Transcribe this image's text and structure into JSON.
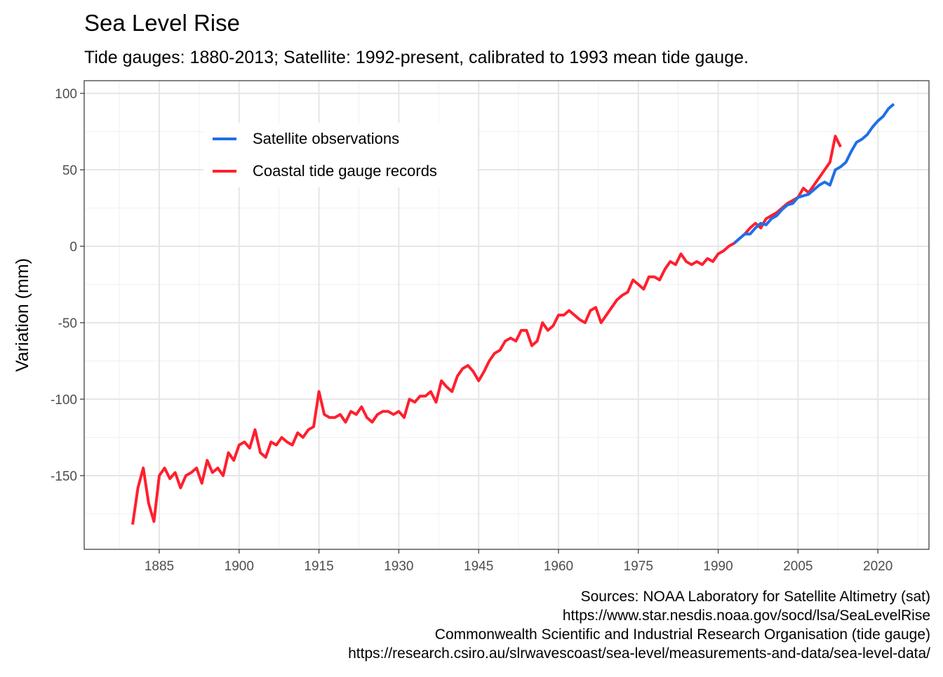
{
  "chart_data": {
    "type": "line",
    "title": "Sea Level Rise",
    "subtitle": "Tide gauges: 1880-2013; Satellite: 1992-present, calibrated to 1993 mean tide gauge.",
    "y_label": "Variation (mm)",
    "caption": [
      "Sources: NOAA Laboratory for Satellite Altimetry (sat)",
      "https://www.star.nesdis.noaa.gov/socd/lsa/SeaLevelRise",
      "Commonwealth Scientific and Industrial Research Organisation (tide gauge)",
      "https://research.csiro.au/slrwavescoast/sea-level/measurements-and-data/sea-level-data/"
    ],
    "xlim": [
      1870.9,
      2029.6
    ],
    "xticks": [
      1885,
      1900,
      1915,
      1930,
      1945,
      1960,
      1975,
      1990,
      2005,
      2020
    ],
    "ylim": [
      -198.2,
      108.3
    ],
    "yticks": [
      -150,
      -100,
      -50,
      0,
      50,
      100
    ],
    "grid": true,
    "legend": "top-left",
    "series": [
      {
        "name": "Satellite observations",
        "color": "#1f6fe8",
        "x": [
          1993,
          1994,
          1995,
          1996,
          1997,
          1998,
          1999,
          2000,
          2001,
          2002,
          2003,
          2004,
          2005,
          2006,
          2007,
          2008,
          2009,
          2010,
          2011,
          2012,
          2013,
          2014,
          2015,
          2016,
          2017,
          2018,
          2019,
          2020,
          2021,
          2022,
          2023
        ],
        "values": [
          2,
          5,
          8,
          8,
          12,
          15,
          14,
          18,
          20,
          24,
          27,
          28,
          32,
          33,
          34,
          37,
          40,
          42,
          40,
          50,
          52,
          55,
          62,
          68,
          70,
          73,
          78,
          82,
          85,
          90,
          93
        ]
      },
      {
        "name": "Coastal tide gauge records",
        "color": "#ff1f2e",
        "x": [
          1880,
          1881,
          1882,
          1883,
          1884,
          1885,
          1886,
          1887,
          1888,
          1889,
          1890,
          1891,
          1892,
          1893,
          1894,
          1895,
          1896,
          1897,
          1898,
          1899,
          1900,
          1901,
          1902,
          1903,
          1904,
          1905,
          1906,
          1907,
          1908,
          1909,
          1910,
          1911,
          1912,
          1913,
          1914,
          1915,
          1916,
          1917,
          1918,
          1919,
          1920,
          1921,
          1922,
          1923,
          1924,
          1925,
          1926,
          1927,
          1928,
          1929,
          1930,
          1931,
          1932,
          1933,
          1934,
          1935,
          1936,
          1937,
          1938,
          1939,
          1940,
          1941,
          1942,
          1943,
          1944,
          1945,
          1946,
          1947,
          1948,
          1949,
          1950,
          1951,
          1952,
          1953,
          1954,
          1955,
          1956,
          1957,
          1958,
          1959,
          1960,
          1961,
          1962,
          1963,
          1964,
          1965,
          1966,
          1967,
          1968,
          1969,
          1970,
          1971,
          1972,
          1973,
          1974,
          1975,
          1976,
          1977,
          1978,
          1979,
          1980,
          1981,
          1982,
          1983,
          1984,
          1985,
          1986,
          1987,
          1988,
          1989,
          1990,
          1991,
          1992,
          1993,
          1994,
          1995,
          1996,
          1997,
          1998,
          1999,
          2000,
          2001,
          2002,
          2003,
          2004,
          2005,
          2006,
          2007,
          2008,
          2009,
          2010,
          2011,
          2012,
          2013
        ],
        "values": [
          -182,
          -158,
          -145,
          -168,
          -180,
          -150,
          -145,
          -152,
          -148,
          -158,
          -150,
          -148,
          -145,
          -155,
          -140,
          -148,
          -145,
          -150,
          -135,
          -140,
          -130,
          -128,
          -132,
          -120,
          -135,
          -138,
          -128,
          -130,
          -125,
          -128,
          -130,
          -122,
          -125,
          -120,
          -118,
          -95,
          -110,
          -112,
          -112,
          -110,
          -115,
          -108,
          -110,
          -105,
          -112,
          -115,
          -110,
          -108,
          -108,
          -110,
          -108,
          -112,
          -100,
          -102,
          -98,
          -98,
          -95,
          -102,
          -88,
          -92,
          -95,
          -85,
          -80,
          -78,
          -82,
          -88,
          -82,
          -75,
          -70,
          -68,
          -62,
          -60,
          -62,
          -55,
          -55,
          -65,
          -62,
          -50,
          -55,
          -52,
          -45,
          -45,
          -42,
          -45,
          -48,
          -50,
          -42,
          -40,
          -50,
          -45,
          -40,
          -35,
          -32,
          -30,
          -22,
          -25,
          -28,
          -20,
          -20,
          -22,
          -15,
          -10,
          -12,
          -5,
          -10,
          -12,
          -10,
          -12,
          -8,
          -10,
          -5,
          -3,
          0,
          2,
          5,
          8,
          12,
          15,
          12,
          18,
          20,
          22,
          25,
          28,
          30,
          32,
          38,
          35,
          40,
          45,
          50,
          55,
          72,
          65
        ]
      }
    ]
  }
}
